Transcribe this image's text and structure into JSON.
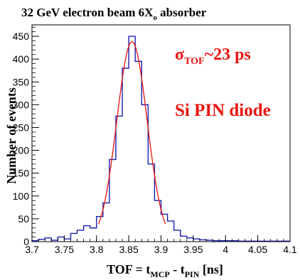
{
  "chart_data": {
    "type": "histogram",
    "title_main": "32 GeV electron beam 6X",
    "title_sub": "o",
    "title_tail": " absorber",
    "xlabel_pre": "TOF = t",
    "xlabel_sub1": "MCP",
    "xlabel_mid": " - t",
    "xlabel_sub2": "PIN",
    "xlabel_post": " [ns]",
    "ylabel": "Number of events",
    "xlim": [
      3.7,
      4.1
    ],
    "ylim": [
      0,
      475
    ],
    "xticks": [
      "3.7",
      "3.75",
      "3.8",
      "3.85",
      "3.9",
      "3.95",
      "4",
      "4.05",
      "4.1"
    ],
    "xtick_values": [
      3.7,
      3.75,
      3.8,
      3.85,
      3.9,
      3.95,
      4.0,
      4.05,
      4.1
    ],
    "yticks": [
      "0",
      "50",
      "100",
      "150",
      "200",
      "250",
      "300",
      "350",
      "400",
      "450"
    ],
    "ytick_values": [
      0,
      50,
      100,
      150,
      200,
      250,
      300,
      350,
      400,
      450
    ],
    "bin_edges": [
      3.7,
      3.71,
      3.72,
      3.73,
      3.74,
      3.75,
      3.76,
      3.77,
      3.78,
      3.79,
      3.8,
      3.81,
      3.82,
      3.83,
      3.84,
      3.85,
      3.86,
      3.87,
      3.88,
      3.89,
      3.9,
      3.91,
      3.92,
      3.93,
      3.94,
      3.95,
      3.96,
      3.97,
      3.98,
      3.99,
      4.0,
      4.01,
      4.02,
      4.03,
      4.04,
      4.05,
      4.06,
      4.07,
      4.08,
      4.09,
      4.1
    ],
    "counts": [
      2,
      5,
      8,
      3,
      10,
      6,
      18,
      25,
      35,
      30,
      55,
      85,
      180,
      275,
      380,
      450,
      395,
      300,
      170,
      90,
      60,
      45,
      25,
      12,
      8,
      6,
      4,
      3,
      2,
      2,
      2,
      2,
      1,
      1,
      1,
      1,
      1,
      1,
      1,
      1
    ],
    "fit": {
      "type": "gaussian",
      "amplitude": 438,
      "mean": 3.855,
      "sigma": 0.0235
    },
    "hist_color": "#1b1fb0",
    "fit_color": "#e8140f",
    "annotations": {
      "sigma_symbol": "σ",
      "sigma_sub": "TOF",
      "sigma_text": "~23 ps",
      "detector": "Si PIN diode"
    }
  }
}
